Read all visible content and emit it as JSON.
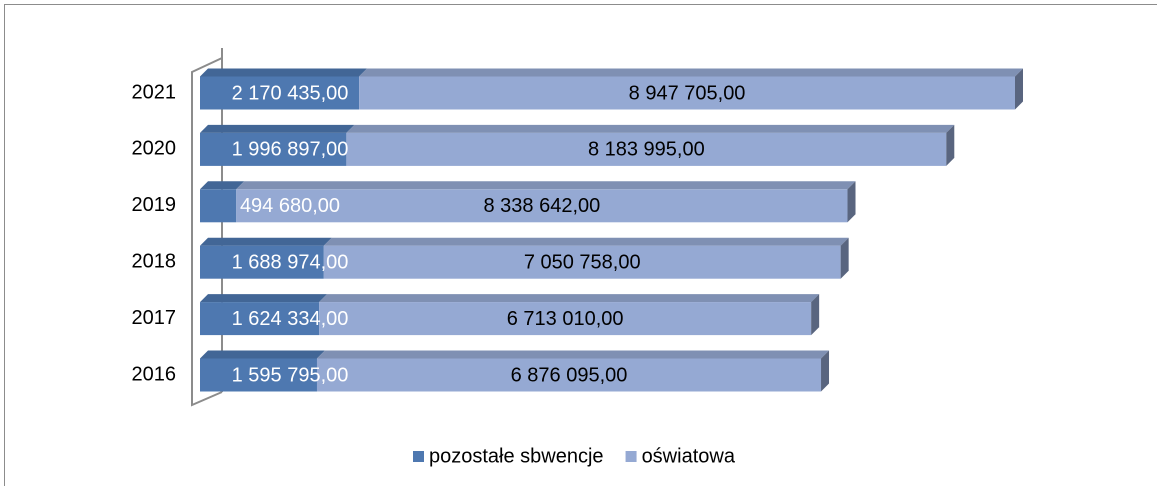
{
  "chart_data": {
    "type": "bar",
    "orientation": "horizontal",
    "stacked": true,
    "categories": [
      "2016",
      "2017",
      "2018",
      "2019",
      "2020",
      "2021"
    ],
    "series": [
      {
        "name": "pozostałe sbwencje",
        "color": "#4e78b0",
        "values": [
          1595795,
          1624334,
          1688974,
          494680,
          1996897,
          2170435
        ],
        "value_labels": [
          "1 595 795,00",
          "1 624 334,00",
          "1 688 974,00",
          "494 680,00",
          "1 996 897,00",
          "2 170 435,00"
        ]
      },
      {
        "name": "oświatowa",
        "color": "#95a9d3",
        "values": [
          6876095,
          6713010,
          7050758,
          8338642,
          8183995,
          8947705
        ],
        "value_labels": [
          "6 876 095,00",
          "6 713 010,00",
          "7 050 758,00",
          "8 338 642,00",
          "8 183 995,00",
          "8 947 705,00"
        ]
      }
    ],
    "legend": "bottom"
  }
}
